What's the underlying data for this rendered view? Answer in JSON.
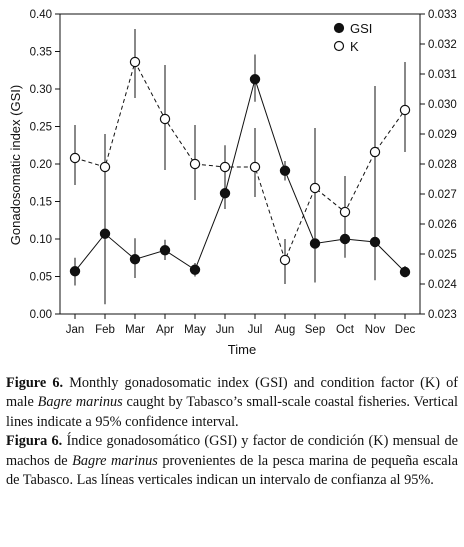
{
  "chart_data": {
    "type": "line",
    "xlabel": "Time",
    "ylabel": "Gonadosomatic index (GSI)",
    "categories": [
      "Jan",
      "Feb",
      "Mar",
      "Apr",
      "May",
      "Jun",
      "Jul",
      "Aug",
      "Sep",
      "Oct",
      "Nov",
      "Dec"
    ],
    "y_left": {
      "lim": [
        0,
        0.4
      ],
      "ticks": [
        "0.00",
        "0.05",
        "0.10",
        "0.15",
        "0.20",
        "0.25",
        "0.30",
        "0.35",
        "0.40"
      ]
    },
    "y_right": {
      "lim": [
        0.023,
        0.033
      ],
      "ticks": [
        "0.023",
        "0.024",
        "0.025",
        "0.026",
        "0.027",
        "0.028",
        "0.029",
        "0.030",
        "0.031",
        "0.032",
        "0.033"
      ]
    },
    "series": [
      {
        "name": "GSI",
        "axis": "left",
        "marker": "filled-circle",
        "line": "solid",
        "values": [
          0.057,
          0.107,
          0.073,
          0.085,
          0.059,
          0.161,
          0.313,
          0.191,
          0.094,
          0.1,
          0.096,
          0.056
        ],
        "ci_low": [
          0.038,
          0.013,
          0.048,
          0.072,
          0.05,
          0.14,
          0.283,
          0.178,
          0.042,
          0.075,
          0.045,
          0.049
        ],
        "ci_high": [
          0.075,
          0.2,
          0.101,
          0.099,
          0.068,
          0.225,
          0.346,
          0.204,
          0.147,
          0.127,
          0.147,
          0.064
        ]
      },
      {
        "name": "K",
        "axis": "right",
        "marker": "open-circle",
        "line": "dashed",
        "values": [
          0.0282,
          0.0279,
          0.0314,
          0.0295,
          0.028,
          0.0279,
          0.0279,
          0.0248,
          0.0272,
          0.0264,
          0.0284,
          0.0298
        ],
        "ci_low": [
          0.0273,
          0.0266,
          0.0302,
          0.0278,
          0.0268,
          0.027,
          0.0269,
          0.024,
          0.025,
          0.0252,
          0.0266,
          0.0284
        ],
        "ci_high": [
          0.0293,
          0.029,
          0.0325,
          0.0313,
          0.0293,
          0.0286,
          0.0292,
          0.0255,
          0.0292,
          0.0276,
          0.0306,
          0.0314
        ]
      }
    ],
    "legend": {
      "placement": "top-right",
      "entries": [
        "GSI",
        "K"
      ]
    }
  },
  "caption": {
    "en_label": "Figure 6.",
    "en_text_1": " Monthly gonadosomatic index (GSI) and condition factor (K) of male ",
    "en_species": "Bagre marinus",
    "en_text_2": " caught by Tabasco’s small-scale coastal fisheries. Vertical lines indicate a 95% confidence interval.",
    "es_label": "Figura 6.",
    "es_text_1": " Índice gonadosomático (GSI) y factor de condición (K) mensual de machos de ",
    "es_species": "Bagre marinus",
    "es_text_2": " provenientes de la pesca marina de pequeña escala de Tabasco. Las líneas verticales indican un intervalo de confianza al 95%."
  }
}
